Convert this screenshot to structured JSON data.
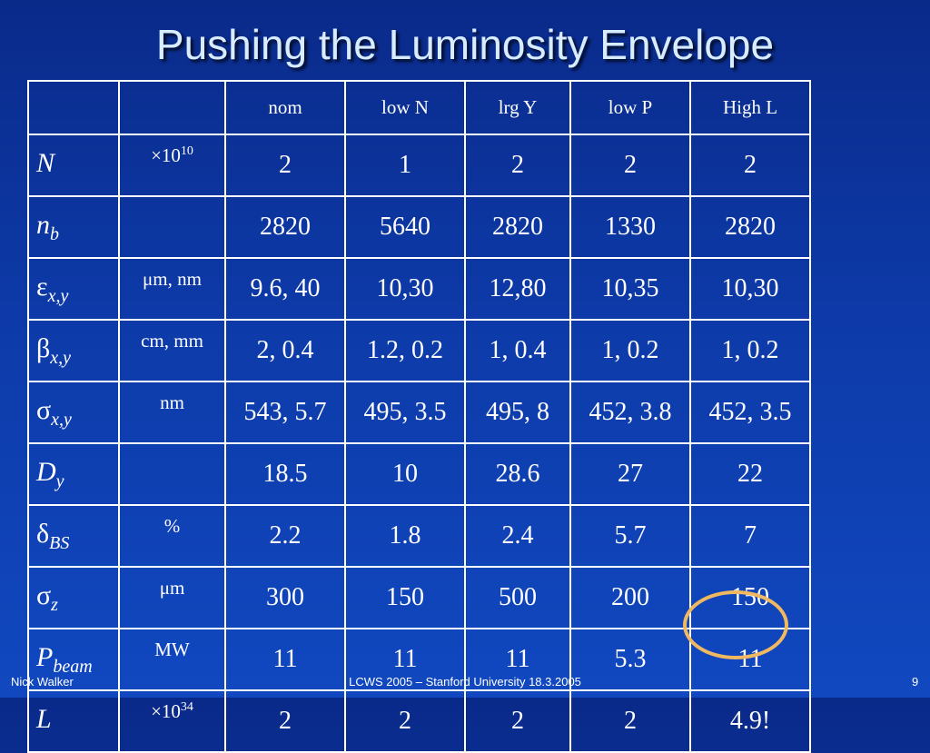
{
  "slide": {
    "title": "Pushing the Luminosity Envelope",
    "footer": {
      "author": "Nick Walker",
      "event": "LCWS 2005 – Stanford University 18.3.2005",
      "page": "9"
    }
  },
  "table": {
    "columns": [
      "nom",
      "low N",
      "lrg Y",
      "low P",
      "High L"
    ],
    "rows": [
      {
        "symbol": "N",
        "sub": "",
        "greek": false,
        "unit": "×10",
        "unit_sup": "10",
        "values": [
          "2",
          "1",
          "2",
          "2",
          "2"
        ]
      },
      {
        "symbol": "n",
        "sub": "b",
        "greek": false,
        "unit": "",
        "unit_sup": "",
        "values": [
          "2820",
          "5640",
          "2820",
          "1330",
          "2820"
        ]
      },
      {
        "symbol": "ε",
        "sub": "x,y",
        "greek": true,
        "unit": "μm, nm",
        "unit_sup": "",
        "values": [
          "9.6, 40",
          "10,30",
          "12,80",
          "10,35",
          "10,30"
        ]
      },
      {
        "symbol": "β",
        "sub": "x,y",
        "greek": true,
        "unit": "cm, mm",
        "unit_sup": "",
        "values": [
          "2, 0.4",
          "1.2, 0.2",
          "1, 0.4",
          "1, 0.2",
          "1, 0.2"
        ]
      },
      {
        "symbol": "σ",
        "sub": "x,y",
        "greek": true,
        "unit": "nm",
        "unit_sup": "",
        "values": [
          "543, 5.7",
          "495, 3.5",
          "495, 8",
          "452, 3.8",
          "452, 3.5"
        ]
      },
      {
        "symbol": "D",
        "sub": "y",
        "greek": false,
        "unit": "",
        "unit_sup": "",
        "values": [
          "18.5",
          "10",
          "28.6",
          "27",
          "22"
        ]
      },
      {
        "symbol": "δ",
        "sub": "BS",
        "greek": true,
        "unit": "%",
        "unit_sup": "",
        "values": [
          "2.2",
          "1.8",
          "2.4",
          "5.7",
          "7"
        ]
      },
      {
        "symbol": "σ",
        "sub": "z",
        "greek": true,
        "unit": "μm",
        "unit_sup": "",
        "values": [
          "300",
          "150",
          "500",
          "200",
          "150"
        ]
      },
      {
        "symbol": "P",
        "sub": "beam",
        "greek": false,
        "unit": "MW",
        "unit_sup": "",
        "values": [
          "11",
          "11",
          "11",
          "5.3",
          "11"
        ]
      },
      {
        "symbol": "L",
        "sub": "",
        "greek": false,
        "unit": "×10",
        "unit_sup": "34",
        "values": [
          "2",
          "2",
          "2",
          "2",
          "4.9!"
        ]
      }
    ]
  },
  "colors": {
    "background": "#0d3aa8",
    "title_text": "#d8ecff",
    "highlight_circle": "#f0b860"
  }
}
